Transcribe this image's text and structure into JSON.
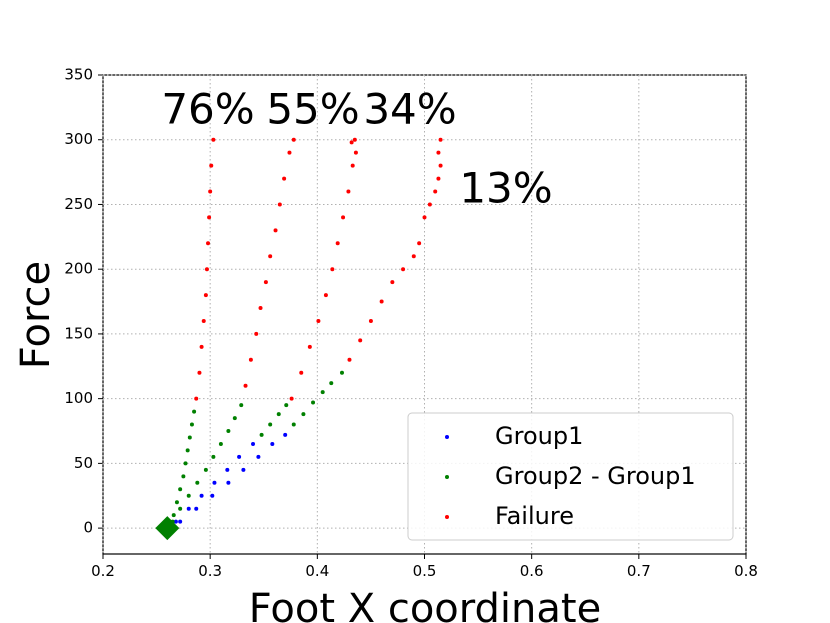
{
  "chart_data": {
    "type": "scatter",
    "xlabel": "Foot X coordinate",
    "ylabel": "Force",
    "xlim": [
      0.2,
      0.8
    ],
    "xticks": [
      0.2,
      0.3,
      0.4,
      0.5,
      0.6,
      0.7,
      0.8
    ],
    "ylim": [
      -20,
      350
    ],
    "yticks": [
      0,
      50,
      100,
      150,
      200,
      250,
      300,
      350
    ],
    "grid": true,
    "legend": "lower right",
    "annotations": [
      "76%",
      "55%",
      "34%",
      "13%"
    ],
    "start_point": {
      "x": 0.26,
      "y": 0,
      "color": "#008000"
    },
    "series": [
      {
        "name": "Group1",
        "color": "#0000ff",
        "x": [
          0.268,
          0.28,
          0.292,
          0.304,
          0.316,
          0.327,
          0.34,
          0.272,
          0.287,
          0.302,
          0.317,
          0.331,
          0.345,
          0.358,
          0.37
        ],
        "y": [
          5,
          15,
          25,
          35,
          45,
          55,
          65,
          5,
          15,
          25,
          35,
          45,
          55,
          65,
          72
        ]
      },
      {
        "name": "Group2 - Group1",
        "color": "#008000",
        "x": [
          0.262,
          0.266,
          0.269,
          0.272,
          0.275,
          0.277,
          0.279,
          0.281,
          0.283,
          0.285,
          0.265,
          0.272,
          0.28,
          0.288,
          0.296,
          0.303,
          0.31,
          0.317,
          0.323,
          0.329,
          0.348,
          0.356,
          0.364,
          0.371,
          0.378,
          0.387,
          0.396,
          0.405,
          0.413,
          0.423
        ],
        "y": [
          0,
          10,
          20,
          30,
          40,
          50,
          60,
          70,
          80,
          90,
          5,
          15,
          25,
          35,
          45,
          55,
          65,
          75,
          85,
          95,
          72,
          80,
          88,
          95,
          80,
          88,
          97,
          105,
          112,
          120
        ]
      },
      {
        "name": "Failure",
        "color": "#ff0000",
        "x": [
          0.287,
          0.29,
          0.292,
          0.294,
          0.296,
          0.297,
          0.298,
          0.299,
          0.3,
          0.301,
          0.303,
          0.333,
          0.338,
          0.343,
          0.347,
          0.352,
          0.356,
          0.361,
          0.365,
          0.369,
          0.374,
          0.378,
          0.376,
          0.385,
          0.393,
          0.401,
          0.408,
          0.414,
          0.419,
          0.424,
          0.429,
          0.433,
          0.436,
          0.432,
          0.435,
          0.43,
          0.44,
          0.45,
          0.46,
          0.47,
          0.48,
          0.49,
          0.495,
          0.5,
          0.505,
          0.51,
          0.513,
          0.515,
          0.513,
          0.515
        ],
        "y": [
          100,
          120,
          140,
          160,
          180,
          200,
          220,
          240,
          260,
          280,
          300,
          110,
          130,
          150,
          170,
          190,
          210,
          230,
          250,
          270,
          290,
          300,
          100,
          120,
          140,
          160,
          180,
          200,
          220,
          240,
          260,
          280,
          290,
          298,
          300,
          130,
          145,
          160,
          175,
          190,
          200,
          210,
          220,
          240,
          250,
          260,
          270,
          280,
          290,
          300
        ]
      }
    ]
  }
}
